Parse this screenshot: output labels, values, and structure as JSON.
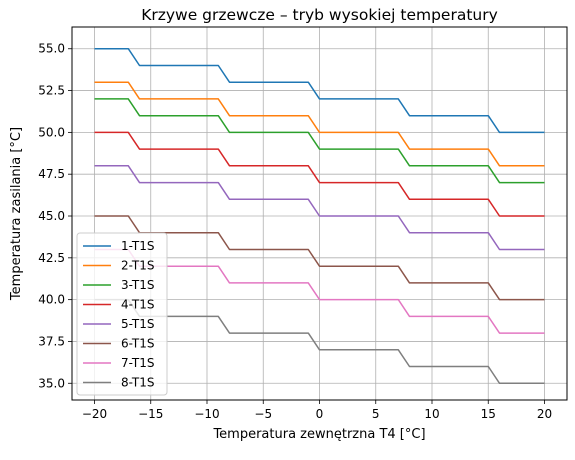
{
  "chart_data": {
    "type": "line",
    "title": "Krzywe grzewcze – tryb wysokiej temperatury",
    "xlabel": "Temperatura zewnętrzna T4 [°C]",
    "ylabel": "Temperatura zasilania [°C]",
    "xlim": [
      -22,
      22
    ],
    "ylim": [
      34,
      56.3
    ],
    "xticks": [
      -20,
      -15,
      -10,
      -5,
      0,
      5,
      10,
      15,
      20
    ],
    "xtick_labels": [
      "−20",
      "−15",
      "−10",
      "−5",
      "0",
      "5",
      "10",
      "15",
      "20"
    ],
    "yticks": [
      35,
      37.5,
      40,
      42.5,
      45,
      47.5,
      50,
      52.5,
      55
    ],
    "ytick_labels": [
      "35.0",
      "37.5",
      "40.0",
      "42.5",
      "45.0",
      "47.5",
      "50.0",
      "52.5",
      "55.0"
    ],
    "grid": true,
    "legend_position": "bottom-left",
    "x": [
      -20,
      -17,
      -16,
      -9,
      -8,
      -1,
      0,
      7,
      8,
      15,
      16,
      20
    ],
    "series": [
      {
        "name": "1-T1S",
        "color": "#1f77b4",
        "values": [
          55,
          55,
          54,
          54,
          53,
          53,
          52,
          52,
          51,
          51,
          50,
          50
        ]
      },
      {
        "name": "2-T1S",
        "color": "#ff7f0e",
        "values": [
          53,
          53,
          52,
          52,
          51,
          51,
          50,
          50,
          49,
          49,
          48,
          48
        ]
      },
      {
        "name": "3-T1S",
        "color": "#2ca02c",
        "values": [
          52,
          52,
          51,
          51,
          50,
          50,
          49,
          49,
          48,
          48,
          47,
          47
        ]
      },
      {
        "name": "4-T1S",
        "color": "#d62728",
        "values": [
          50,
          50,
          49,
          49,
          48,
          48,
          47,
          47,
          46,
          46,
          45,
          45
        ]
      },
      {
        "name": "5-T1S",
        "color": "#9467bd",
        "values": [
          48,
          48,
          47,
          47,
          46,
          46,
          45,
          45,
          44,
          44,
          43,
          43
        ]
      },
      {
        "name": "6-T1S",
        "color": "#8c564b",
        "values": [
          45,
          45,
          44,
          44,
          43,
          43,
          42,
          42,
          41,
          41,
          40,
          40
        ]
      },
      {
        "name": "7-T1S",
        "color": "#e377c2",
        "values": [
          43,
          43,
          42,
          42,
          41,
          41,
          40,
          40,
          39,
          39,
          38,
          38
        ]
      },
      {
        "name": "8-T1S",
        "color": "#7f7f7f",
        "values": [
          40,
          40,
          39,
          39,
          38,
          38,
          37,
          37,
          36,
          36,
          35,
          35
        ]
      }
    ]
  }
}
